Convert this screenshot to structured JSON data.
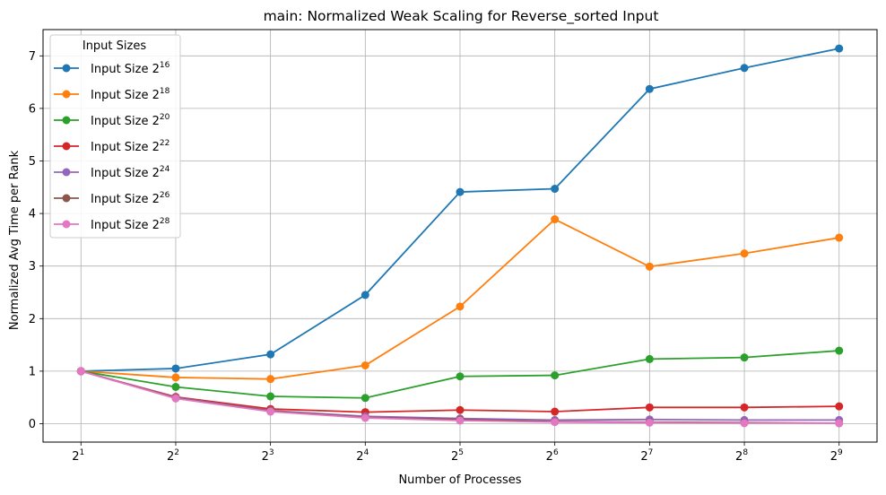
{
  "chart_data": {
    "type": "line",
    "title": "main: Normalized Weak Scaling for Reverse_sorted Input",
    "xlabel": "Number of Processes",
    "ylabel": "Normalized Avg Time per Rank",
    "x_scale": "log2",
    "x": [
      2,
      4,
      8,
      16,
      32,
      64,
      128,
      256,
      512
    ],
    "x_tick_labels": [
      {
        "base": "2",
        "exp": "1"
      },
      {
        "base": "2",
        "exp": "2"
      },
      {
        "base": "2",
        "exp": "3"
      },
      {
        "base": "2",
        "exp": "4"
      },
      {
        "base": "2",
        "exp": "5"
      },
      {
        "base": "2",
        "exp": "6"
      },
      {
        "base": "2",
        "exp": "7"
      },
      {
        "base": "2",
        "exp": "8"
      },
      {
        "base": "2",
        "exp": "9"
      }
    ],
    "ylim": [
      -0.35,
      7.5
    ],
    "y_ticks": [
      0,
      1,
      2,
      3,
      4,
      5,
      6,
      7
    ],
    "grid": true,
    "legend": {
      "title": "Input Sizes",
      "placement": "upper-left"
    },
    "series": [
      {
        "name": "Input Size 2",
        "exp": "16",
        "color": "#1f77b4",
        "values": [
          1.0,
          1.05,
          1.32,
          2.45,
          4.41,
          4.47,
          6.37,
          6.77,
          7.14
        ]
      },
      {
        "name": "Input Size 2",
        "exp": "18",
        "color": "#ff7f0e",
        "values": [
          1.0,
          0.88,
          0.85,
          1.11,
          2.23,
          3.89,
          2.99,
          3.24,
          3.54
        ]
      },
      {
        "name": "Input Size 2",
        "exp": "20",
        "color": "#2ca02c",
        "values": [
          1.0,
          0.7,
          0.52,
          0.49,
          0.9,
          0.92,
          1.23,
          1.26,
          1.39
        ]
      },
      {
        "name": "Input Size 2",
        "exp": "22",
        "color": "#d62728",
        "values": [
          1.0,
          0.51,
          0.28,
          0.22,
          0.26,
          0.23,
          0.31,
          0.31,
          0.33
        ]
      },
      {
        "name": "Input Size 2",
        "exp": "24",
        "color": "#9467bd",
        "values": [
          1.0,
          0.5,
          0.25,
          0.14,
          0.1,
          0.07,
          0.08,
          0.07,
          0.07
        ]
      },
      {
        "name": "Input Size 2",
        "exp": "26",
        "color": "#8c564b",
        "values": [
          1.0,
          0.49,
          0.24,
          0.12,
          0.08,
          0.04,
          0.03,
          0.02,
          0.01
        ]
      },
      {
        "name": "Input Size 2",
        "exp": "28",
        "color": "#e377c2",
        "values": [
          1.0,
          0.48,
          0.23,
          0.11,
          0.06,
          0.03,
          0.02,
          0.01,
          0.01
        ]
      }
    ]
  }
}
